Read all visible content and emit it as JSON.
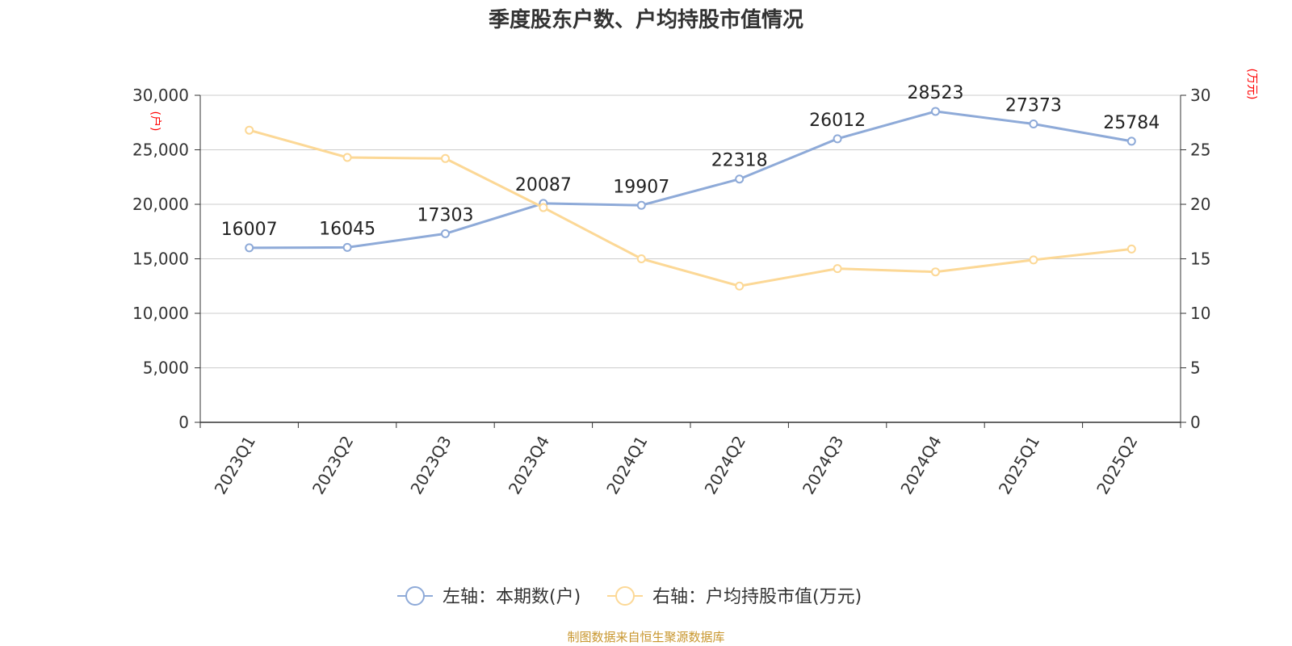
{
  "chart_data": {
    "type": "line",
    "title": "季度股东户数、户均持股市值情况",
    "categories": [
      "2023Q1",
      "2023Q2",
      "2023Q3",
      "2023Q4",
      "2024Q1",
      "2024Q2",
      "2024Q3",
      "2024Q4",
      "2025Q1",
      "2025Q2"
    ],
    "left_axis": {
      "unit": "(户)",
      "ylim": [
        0,
        30000
      ],
      "ticks": [
        "0",
        "5,000",
        "10,000",
        "15,000",
        "20,000",
        "25,000",
        "30,000"
      ],
      "tick_values": [
        0,
        5000,
        10000,
        15000,
        20000,
        25000,
        30000
      ]
    },
    "right_axis": {
      "unit": "(万元)",
      "ylim": [
        0,
        30
      ],
      "ticks": [
        "0",
        "5",
        "10",
        "15",
        "20",
        "25",
        "30"
      ],
      "tick_values": [
        0,
        5,
        10,
        15,
        20,
        25,
        30
      ]
    },
    "series": [
      {
        "name": "左轴：本期数(户)",
        "axis": "left",
        "color": "#8eaad8",
        "values": [
          16007,
          16045,
          17303,
          20087,
          19907,
          22318,
          26012,
          28523,
          27373,
          25784
        ],
        "labels": [
          "16007",
          "16045",
          "17303",
          "20087",
          "19907",
          "22318",
          "26012",
          "28523",
          "27373",
          "25784"
        ]
      },
      {
        "name": "右轴：户均持股市值(万元)",
        "axis": "right",
        "color": "#fcd896",
        "values": [
          26.8,
          24.3,
          24.2,
          19.7,
          15.0,
          12.5,
          14.1,
          13.8,
          14.9,
          15.9
        ]
      }
    ],
    "grid": true,
    "legend_position": "bottom-center"
  },
  "source": "制图数据来自恒生聚源数据库",
  "colors": {
    "axis_unit": "#ff0000",
    "axis_line": "#333333",
    "grid": "#cccccc",
    "text": "#333333"
  }
}
